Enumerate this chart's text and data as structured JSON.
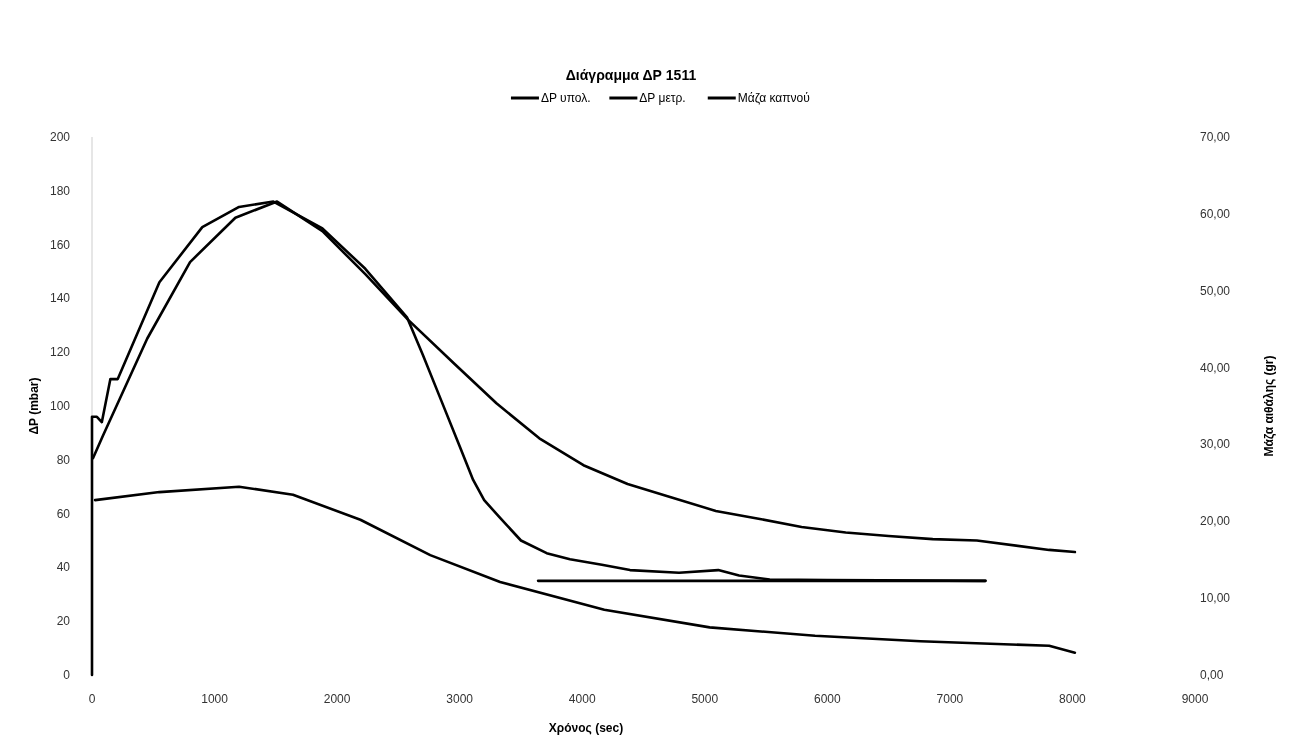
{
  "chart_data": {
    "type": "line",
    "title": "Διάγραμμα ΔΡ 1511",
    "xlabel": "Χρόνος (sec)",
    "ylabel": "ΔP (mbar)",
    "y2label": "Μάζα αιθάλης (gr)",
    "xlim": [
      0,
      9000
    ],
    "xticks": [
      0,
      1000,
      2000,
      3000,
      4000,
      5000,
      6000,
      7000,
      8000,
      9000
    ],
    "ylim": [
      0,
      200
    ],
    "yticks": [
      0,
      20,
      40,
      60,
      80,
      100,
      120,
      140,
      160,
      180,
      200
    ],
    "y2lim": [
      0,
      70
    ],
    "y2ticks": [
      {
        "value": 0,
        "label": "0,00"
      },
      {
        "value": 10,
        "label": "10,00"
      },
      {
        "value": 20,
        "label": "20,00"
      },
      {
        "value": 30,
        "label": "30,00"
      },
      {
        "value": 40,
        "label": "40,00"
      },
      {
        "value": 50,
        "label": "50,00"
      },
      {
        "value": 60,
        "label": "60,00"
      },
      {
        "value": 70,
        "label": "70,00"
      }
    ],
    "grid": false,
    "legend": "top",
    "marker": "none",
    "line_style": "solid",
    "series": [
      {
        "name": "ΔP υπολ.",
        "color": "#000000",
        "x": [
          8,
          90,
          450,
          800,
          1170,
          1510,
          1880,
          2230,
          2580,
          2950,
          3300,
          3650,
          4010,
          4370,
          4730,
          5090,
          5450,
          5790,
          6150,
          6500,
          6860,
          7220,
          7810,
          8020
        ],
        "values": [
          80.6,
          89,
          125,
          153.5,
          170,
          176,
          165,
          149,
          132,
          116,
          101,
          88,
          78,
          71,
          66,
          61,
          58,
          55,
          53,
          51.7,
          50.5,
          50,
          46.5,
          45.7
        ]
      },
      {
        "name": "ΔP μετρ.",
        "color": "#000000",
        "x": [
          0,
          0,
          40,
          80,
          150,
          210,
          550,
          900,
          1200,
          1480,
          1880,
          2230,
          2570,
          2700,
          2850,
          3000,
          3110,
          3200,
          3330,
          3500,
          3710,
          3900,
          4160,
          4390,
          4790,
          5110,
          5280,
          5530,
          6000,
          7290
        ],
        "values": [
          0,
          96,
          96,
          94,
          110,
          110,
          146,
          166.5,
          174,
          176,
          166,
          151,
          133,
          119,
          102,
          85,
          72.5,
          65,
          58.4,
          50,
          45.3,
          43,
          41,
          39,
          38,
          39,
          37,
          35.5,
          35.3,
          35
        ]
      },
      {
        "name": "Μάζα καπνού",
        "color": "#000000",
        "axis": "y2",
        "x": [
          25,
          550,
          1200,
          1640,
          2190,
          2760,
          3330,
          4180,
          5040,
          5900,
          6760,
          7810,
          8020
        ],
        "values": [
          22.75,
          23.8,
          24.5,
          23.45,
          20.2,
          15.6,
          12.1,
          8.5,
          6.2,
          5.1,
          4.4,
          3.8,
          2.9
        ]
      },
      {
        "color": "#000000",
        "x": [
          3640,
          7290
        ],
        "values": [
          35,
          35
        ]
      }
    ]
  }
}
